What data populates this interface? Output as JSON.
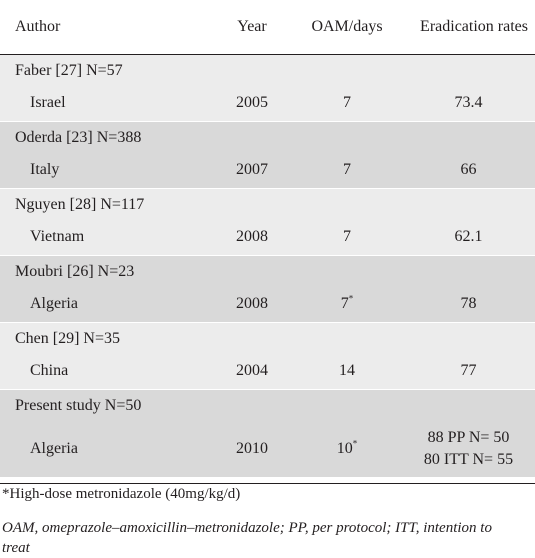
{
  "table": {
    "headers": {
      "author": "Author",
      "year": "Year",
      "oam": "OAM/days",
      "rates": "Eradication rates"
    },
    "rows": [
      {
        "study": "Faber [27] N=57",
        "country": "Israel",
        "year": "2005",
        "oam": "7",
        "oam_mark": "",
        "rate_lines": [
          "73.4"
        ]
      },
      {
        "study": "Oderda [23] N=388",
        "country": "Italy",
        "year": "2007",
        "oam": "7",
        "oam_mark": "",
        "rate_lines": [
          "66"
        ]
      },
      {
        "study": "Nguyen [28] N=117",
        "country": "Vietnam",
        "year": "2008",
        "oam": "7",
        "oam_mark": "",
        "rate_lines": [
          "62.1"
        ]
      },
      {
        "study": "Moubri [26] N=23",
        "country": "Algeria",
        "year": "2008",
        "oam": "7",
        "oam_mark": "*",
        "rate_lines": [
          "78"
        ]
      },
      {
        "study": "Chen [29] N=35",
        "country": "China",
        "year": "2004",
        "oam": "14",
        "oam_mark": "",
        "rate_lines": [
          "77"
        ]
      },
      {
        "study": "Present study N=50",
        "country": "Algeria",
        "year": "2010",
        "oam": "10",
        "oam_mark": "*",
        "rate_lines": [
          "88 PP N= 50",
          "80 ITT N= 55"
        ]
      }
    ]
  },
  "footnotes": {
    "dose_note": "*High-dose metronidazole (40mg/kg/d)",
    "abbreviations": "OAM, omeprazole–amoxicillin–metronidazole; PP, per protocol; ITT, intention to treat"
  }
}
